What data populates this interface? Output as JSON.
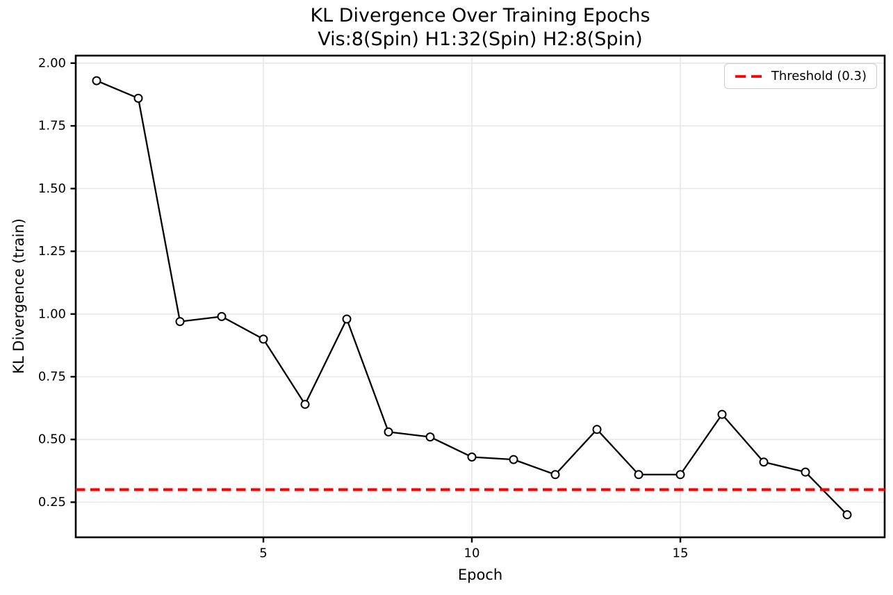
{
  "chart_data": {
    "type": "line",
    "title": "KL Divergence Over Training Epochs",
    "subtitle": "Vis:8(Spin) H1:32(Spin) H2:8(Spin)",
    "xlabel": "Epoch",
    "ylabel": "KL Divergence (train)",
    "x": [
      1,
      2,
      3,
      4,
      5,
      6,
      7,
      8,
      9,
      10,
      11,
      12,
      13,
      14,
      15,
      16,
      17,
      18,
      19
    ],
    "y": [
      1.93,
      1.86,
      0.97,
      0.99,
      0.9,
      0.64,
      0.98,
      0.53,
      0.51,
      0.43,
      0.42,
      0.36,
      0.54,
      0.36,
      0.36,
      0.6,
      0.41,
      0.37,
      0.2
    ],
    "series_name": "KL Divergence (train)",
    "line_color": "#000000",
    "marker": "open-circle",
    "threshold": {
      "value": 0.3,
      "label": "Threshold (0.3)",
      "color": "#ff0000",
      "style": "dashed"
    },
    "xlim": [
      0.5,
      19.9
    ],
    "ylim": [
      0.11,
      2.03
    ],
    "x_ticks": [
      5,
      10,
      15
    ],
    "y_ticks": [
      0.25,
      0.5,
      0.75,
      1.0,
      1.25,
      1.5,
      1.75,
      2.0
    ],
    "grid": true,
    "grid_color": "#e8e8e8",
    "legend_position": "upper right",
    "background": "#ffffff"
  }
}
